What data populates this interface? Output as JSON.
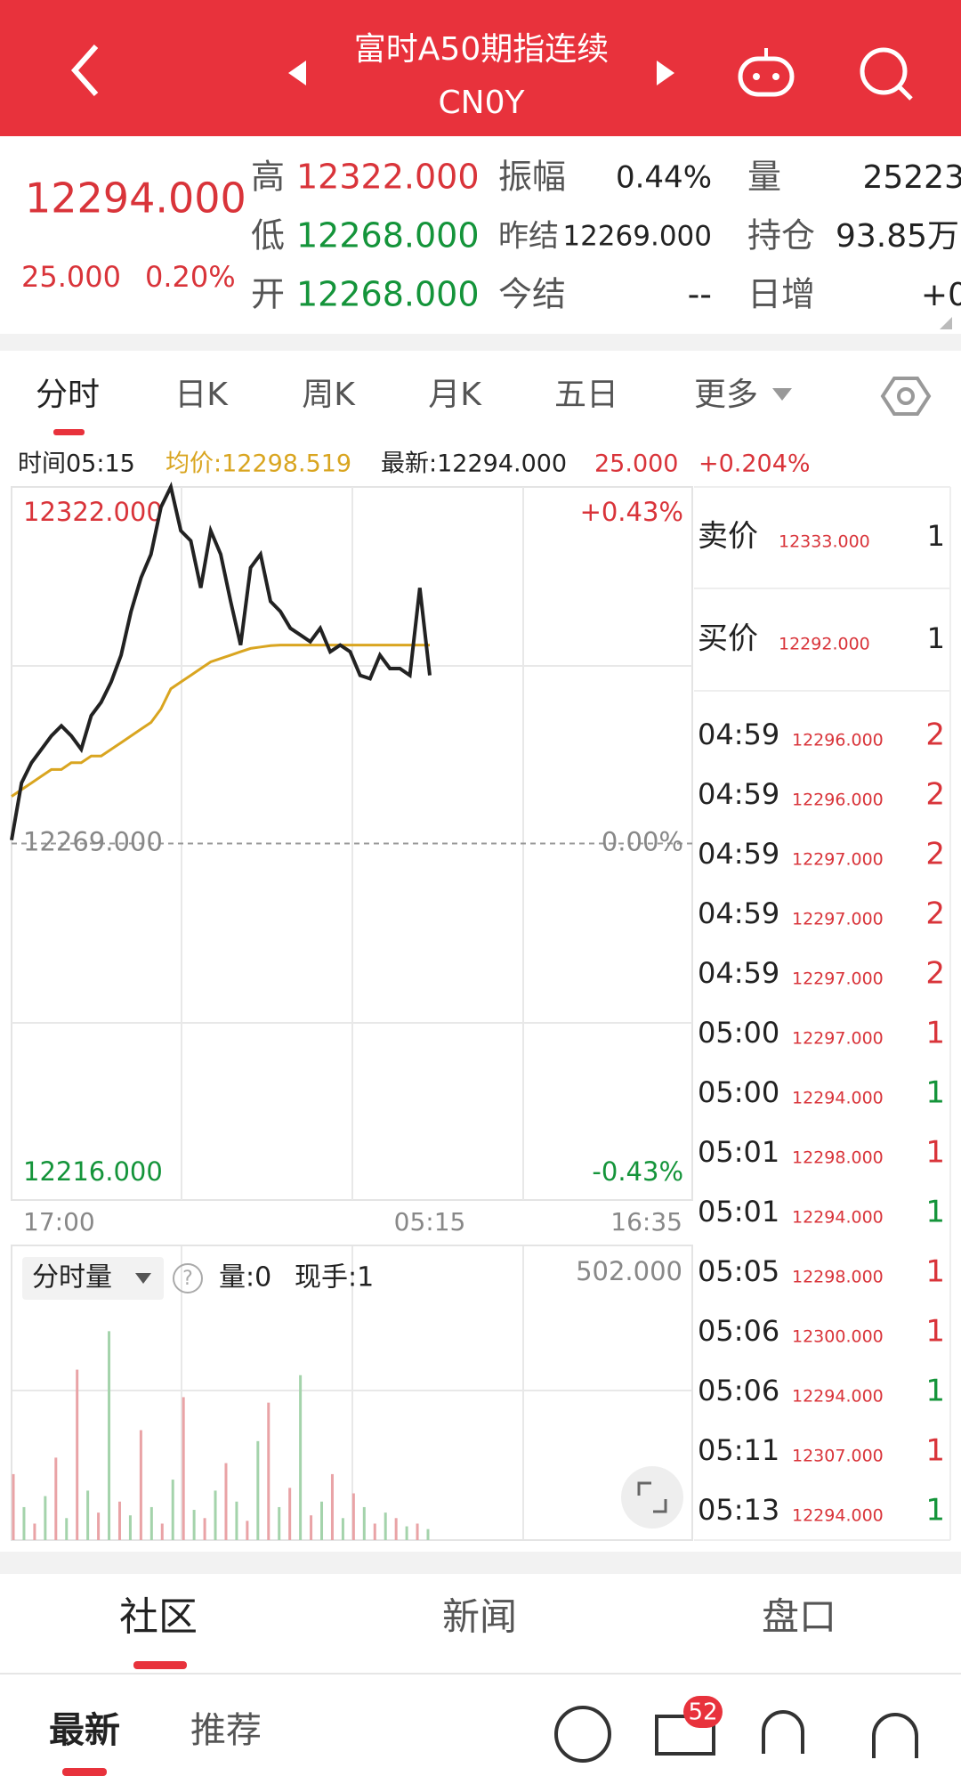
{
  "header": {
    "title": "富时A50期指连续",
    "subtitle": "CN0Y"
  },
  "quote": {
    "price": "12294.000",
    "change": "25.000",
    "change_pct": "0.20%",
    "stats": [
      {
        "label": "高",
        "value": "12322.000"
      },
      {
        "label": "低",
        "value": "12268.000"
      },
      {
        "label": "开",
        "value": "12268.000"
      },
      {
        "label": "振幅",
        "value": "0.44%"
      },
      {
        "label": "昨结",
        "value": "12269.000"
      },
      {
        "label": "今结",
        "value": "--"
      },
      {
        "label": "量",
        "value": "25223"
      },
      {
        "label": "持仓",
        "value": "93.85万"
      },
      {
        "label": "日增",
        "value": "+0"
      }
    ]
  },
  "tabs": [
    "分时",
    "日K",
    "周K",
    "月K",
    "五日",
    "更多"
  ],
  "info": {
    "time": "时间05:15",
    "avg": "均价:12298.519",
    "latest": "最新:12294.000",
    "change": "25.000",
    "change_pct": "+0.204%"
  },
  "price_chart": {
    "type": "line",
    "ylim": [
      12216,
      12322
    ],
    "yticks": [
      {
        "value": 12322,
        "label": "12322.000"
      },
      {
        "value": 12269,
        "label": "12269.000"
      },
      {
        "value": 12216,
        "label": "12216.000"
      }
    ],
    "y2lim": [
      -0.43,
      0.43
    ],
    "y2ticks": [
      {
        "value": 0.43,
        "label": "+0.43%"
      },
      {
        "value": 0,
        "label": "0.00%"
      },
      {
        "value": -0.43,
        "label": "-0.43%"
      }
    ],
    "xticks": [
      "17:00",
      "05:15",
      "16:35"
    ],
    "series": [
      {
        "color": "#222222",
        "values": [
          12269.5,
          12278,
          12281,
          12283,
          12285,
          12286.5,
          12285,
          12283,
          12288,
          12290,
          12293,
          12297,
          12303.5,
          12308.5,
          12312,
          12319,
          12322,
          12315.5,
          12314,
          12307,
          12315.5,
          12312,
          12305,
          12298.5,
          12310,
          12312,
          12305,
          12303.5,
          12301,
          12300,
          12299,
          12301,
          12297.5,
          12298.5,
          12297.5,
          12294,
          12293.5,
          12297,
          12295,
          12295,
          12294,
          12307,
          12294
        ]
      },
      {
        "color": "#d9a520",
        "values": [
          12276,
          12277,
          12278,
          12279,
          12280,
          12280,
          12281,
          12281,
          12282,
          12282,
          12283,
          12284,
          12285,
          12286,
          12287,
          12289,
          12292,
          12293,
          12294,
          12295,
          12296,
          12296.5,
          12297,
          12297.5,
          12298,
          12298.2,
          12298.4,
          12298.5,
          12298.5,
          12298.5,
          12298.5,
          12298.5,
          12298.5,
          12298.5,
          12298.5,
          12298.5,
          12298.5,
          12298.5,
          12298.5,
          12298.5,
          12298.5,
          12298.5,
          12298.5
        ]
      }
    ]
  },
  "volume_chart": {
    "type": "bar",
    "label": "分时量",
    "help": "?",
    "vol": "量:0",
    "hand": "现手:1",
    "ylim": [
      0,
      502
    ],
    "yticks": [
      {
        "value": 502,
        "label": "502.000"
      }
    ],
    "values": [
      120,
      60,
      30,
      80,
      150,
      40,
      310,
      90,
      50,
      380,
      70,
      45,
      200,
      60,
      30,
      110,
      260,
      55,
      40,
      90,
      140,
      70,
      35,
      180,
      250,
      60,
      95,
      300,
      45,
      70,
      120,
      40,
      85,
      60,
      30,
      50,
      40,
      25,
      30,
      20
    ],
    "colors": [
      "#e9a3a6",
      "#a4d3ab"
    ]
  },
  "order_book": {
    "sell": {
      "label": "卖价",
      "price": "12333.000",
      "volume": "1"
    },
    "buy": {
      "label": "买价",
      "price": "12292.000",
      "volume": "1"
    },
    "trades": [
      {
        "time": "04:59",
        "price": "12296.000",
        "volume": "2",
        "color": "#d9343a"
      },
      {
        "time": "04:59",
        "price": "12296.000",
        "volume": "2",
        "color": "#d9343a"
      },
      {
        "time": "04:59",
        "price": "12297.000",
        "volume": "2",
        "color": "#d9343a"
      },
      {
        "time": "04:59",
        "price": "12297.000",
        "volume": "2",
        "color": "#d9343a"
      },
      {
        "time": "04:59",
        "price": "12297.000",
        "volume": "2",
        "color": "#d9343a"
      },
      {
        "time": "05:00",
        "price": "12297.000",
        "volume": "1",
        "color": "#d9343a"
      },
      {
        "time": "05:00",
        "price": "12294.000",
        "volume": "1",
        "color": "#14943a"
      },
      {
        "time": "05:01",
        "price": "12298.000",
        "volume": "1",
        "color": "#d9343a"
      },
      {
        "time": "05:01",
        "price": "12294.000",
        "volume": "1",
        "color": "#14943a"
      },
      {
        "time": "05:05",
        "price": "12298.000",
        "volume": "1",
        "color": "#d9343a"
      },
      {
        "time": "05:06",
        "price": "12300.000",
        "volume": "1",
        "color": "#d9343a"
      },
      {
        "time": "05:06",
        "price": "12294.000",
        "volume": "1",
        "color": "#14943a"
      },
      {
        "time": "05:11",
        "price": "12307.000",
        "volume": "1",
        "color": "#d9343a"
      },
      {
        "time": "05:13",
        "price": "12294.000",
        "volume": "1",
        "color": "#14943a"
      }
    ]
  },
  "bottom_tabs": [
    "社区",
    "新闻",
    "盘口"
  ],
  "sub_tabs": [
    "最新",
    "推荐"
  ],
  "badge": "52"
}
